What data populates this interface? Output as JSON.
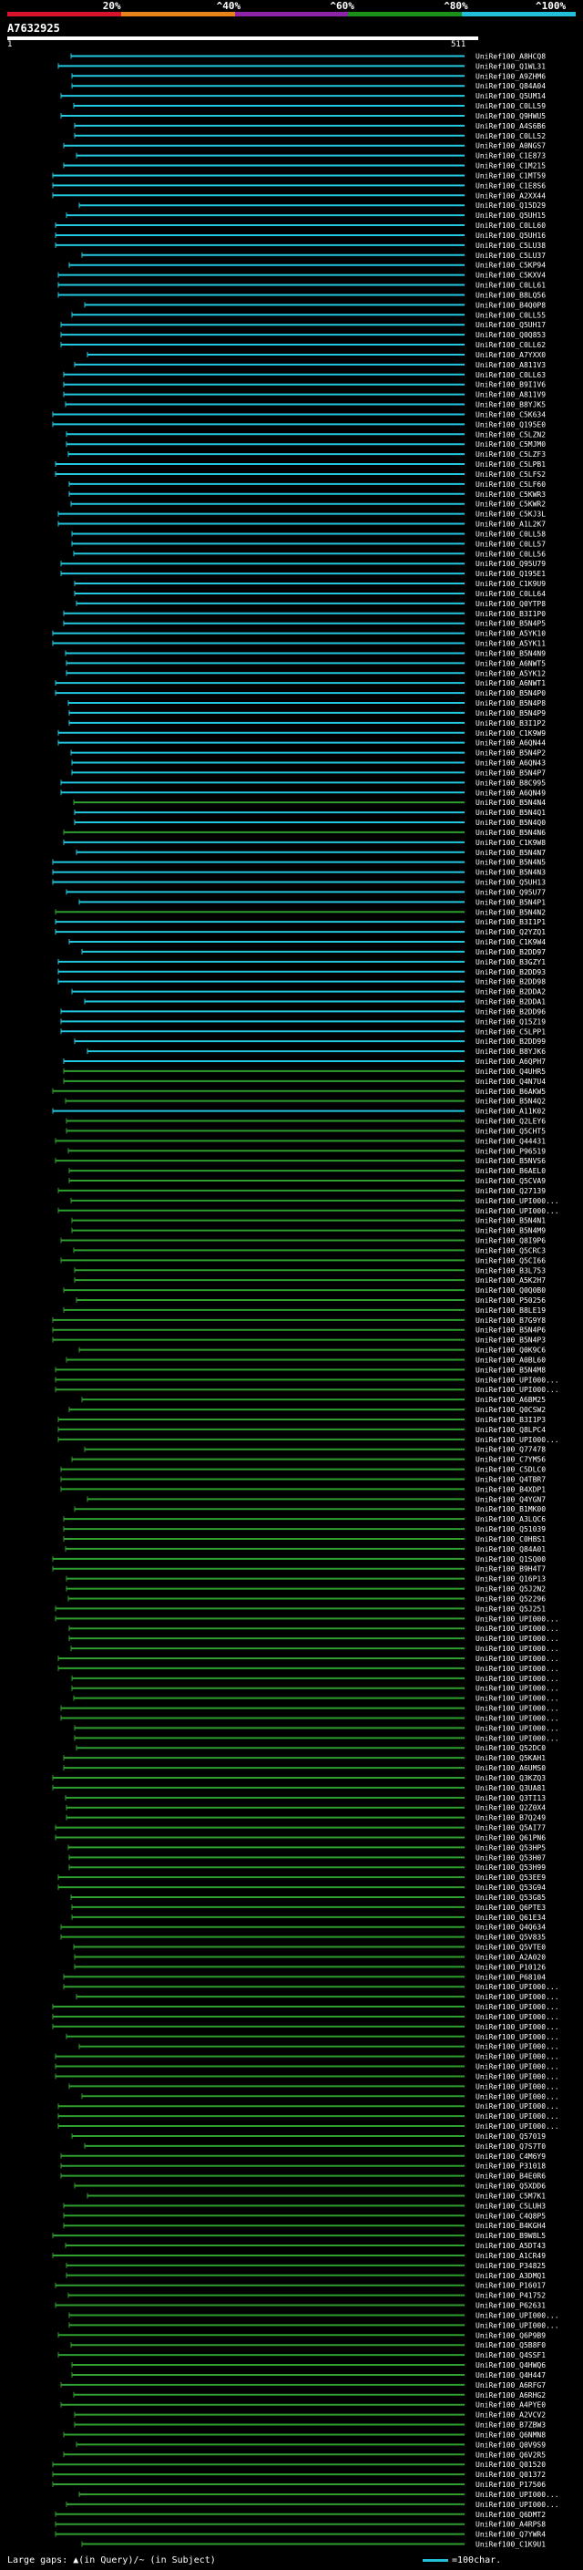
{
  "legend": {
    "ticks": [
      {
        "label": "20%"
      },
      {
        "label": "^40%"
      },
      {
        "label": "^60%"
      },
      {
        "label": "^80%"
      },
      {
        "label": "^100%"
      }
    ],
    "colors": [
      "#d8142a",
      "#e8821a",
      "#8e24a8",
      "#1a8f1a",
      "#22c0d8"
    ]
  },
  "query": {
    "id": "A7632925",
    "start": "1",
    "end": "511"
  },
  "colors": {
    "high": "#22c8e0",
    "low": "#2e9e2e",
    "background": "#000000",
    "text": "#ffffff"
  },
  "hits": [
    {
      "label": "UniRef100_A8HCQ8",
      "group": "high"
    },
    {
      "label": "UniRef100_Q1WL31",
      "group": "high"
    },
    {
      "label": "UniRef100_A9ZHM6",
      "group": "high"
    },
    {
      "label": "UniRef100_Q84A04",
      "group": "high"
    },
    {
      "label": "UniRef100_Q5UM14",
      "group": "high"
    },
    {
      "label": "UniRef100_C0LL59",
      "group": "high"
    },
    {
      "label": "UniRef100_Q9HWU5",
      "group": "high"
    },
    {
      "label": "UniRef100_A4S6B6",
      "group": "high"
    },
    {
      "label": "UniRef100_C0LL52",
      "group": "high"
    },
    {
      "label": "UniRef100_A0NGS7",
      "group": "high"
    },
    {
      "label": "UniRef100_C1E873",
      "group": "high"
    },
    {
      "label": "UniRef100_C1M215",
      "group": "high"
    },
    {
      "label": "UniRef100_C1MT59",
      "group": "high"
    },
    {
      "label": "UniRef100_C1E8S6",
      "group": "high"
    },
    {
      "label": "UniRef100_A2XX44",
      "group": "high"
    },
    {
      "label": "UniRef100_Q15D29",
      "group": "high"
    },
    {
      "label": "UniRef100_Q5UH15",
      "group": "high"
    },
    {
      "label": "UniRef100_C0LL60",
      "group": "high"
    },
    {
      "label": "UniRef100_Q5UH16",
      "group": "high"
    },
    {
      "label": "UniRef100_C5LU38",
      "group": "high"
    },
    {
      "label": "UniRef100_C5LU37",
      "group": "high"
    },
    {
      "label": "UniRef100_C5KP94",
      "group": "high"
    },
    {
      "label": "UniRef100_C5KXV4",
      "group": "high"
    },
    {
      "label": "UniRef100_C0LL61",
      "group": "high"
    },
    {
      "label": "UniRef100_B8LQ56",
      "group": "high"
    },
    {
      "label": "UniRef100_B4Q0P8",
      "group": "high"
    },
    {
      "label": "UniRef100_C0LL55",
      "group": "high"
    },
    {
      "label": "UniRef100_Q5UH17",
      "group": "high"
    },
    {
      "label": "UniRef100_Q0Q853",
      "group": "high"
    },
    {
      "label": "UniRef100_C0LL62",
      "group": "high"
    },
    {
      "label": "UniRef100_A7YXX0",
      "group": "high"
    },
    {
      "label": "UniRef100_A811V3",
      "group": "high"
    },
    {
      "label": "UniRef100_C0LL63",
      "group": "high"
    },
    {
      "label": "UniRef100_B9I1V6",
      "group": "high"
    },
    {
      "label": "UniRef100_A811V9",
      "group": "high"
    },
    {
      "label": "UniRef100_B8YJK5",
      "group": "high"
    },
    {
      "label": "UniRef100_C5K634",
      "group": "high"
    },
    {
      "label": "UniRef100_Q195E0",
      "group": "high"
    },
    {
      "label": "UniRef100_C5LZN2",
      "group": "high"
    },
    {
      "label": "UniRef100_C5MJM0",
      "group": "high"
    },
    {
      "label": "UniRef100_C5LZF3",
      "group": "high"
    },
    {
      "label": "UniRef100_C5LPB1",
      "group": "high"
    },
    {
      "label": "UniRef100_C5LFS2",
      "group": "high"
    },
    {
      "label": "UniRef100_C5LF60",
      "group": "high"
    },
    {
      "label": "UniRef100_C5KWR3",
      "group": "high"
    },
    {
      "label": "UniRef100_C5KWR2",
      "group": "high"
    },
    {
      "label": "UniRef100_C5KJ3L",
      "group": "high"
    },
    {
      "label": "UniRef100_A1L2K7",
      "group": "high"
    },
    {
      "label": "UniRef100_C0LL58",
      "group": "high"
    },
    {
      "label": "UniRef100_C0LL57",
      "group": "high"
    },
    {
      "label": "UniRef100_C0LL56",
      "group": "high"
    },
    {
      "label": "UniRef100_Q95U79",
      "group": "high"
    },
    {
      "label": "UniRef100_Q195E1",
      "group": "high"
    },
    {
      "label": "UniRef100_C1K9U9",
      "group": "high"
    },
    {
      "label": "UniRef100_C0LL64",
      "group": "high"
    },
    {
      "label": "UniRef100_Q0YTP8",
      "group": "high"
    },
    {
      "label": "UniRef100_B3I1P0",
      "group": "high"
    },
    {
      "label": "UniRef100_B5N4P5",
      "group": "high"
    },
    {
      "label": "UniRef100_A5YK10",
      "group": "high"
    },
    {
      "label": "UniRef100_A5YK11",
      "group": "high"
    },
    {
      "label": "UniRef100_B5N4N9",
      "group": "high"
    },
    {
      "label": "UniRef100_A6NWT5",
      "group": "high"
    },
    {
      "label": "UniRef100_A5YK12",
      "group": "high"
    },
    {
      "label": "UniRef100_A6NWT1",
      "group": "high"
    },
    {
      "label": "UniRef100_B5N4P0",
      "group": "high"
    },
    {
      "label": "UniRef100_B5N4P8",
      "group": "high"
    },
    {
      "label": "UniRef100_B5N4P9",
      "group": "high"
    },
    {
      "label": "UniRef100_B3I1P2",
      "group": "high"
    },
    {
      "label": "UniRef100_C1K9W9",
      "group": "high"
    },
    {
      "label": "UniRef100_A6QN44",
      "group": "high"
    },
    {
      "label": "UniRef100_B5N4P2",
      "group": "high"
    },
    {
      "label": "UniRef100_A6QN43",
      "group": "high"
    },
    {
      "label": "UniRef100_B5N4P7",
      "group": "high"
    },
    {
      "label": "UniRef100_B8C995",
      "group": "high"
    },
    {
      "label": "UniRef100_A6QN49",
      "group": "high"
    },
    {
      "label": "UniRef100_B5N4N4",
      "group": "low"
    },
    {
      "label": "UniRef100_B5N4Q1",
      "group": "high"
    },
    {
      "label": "UniRef100_B5N4Q0",
      "group": "high"
    },
    {
      "label": "UniRef100_B5N4N6",
      "group": "low"
    },
    {
      "label": "UniRef100_C1K9W8",
      "group": "high"
    },
    {
      "label": "UniRef100_B5N4N7",
      "group": "high"
    },
    {
      "label": "UniRef100_B5N4N5",
      "group": "high"
    },
    {
      "label": "UniRef100_B5N4N3",
      "group": "high"
    },
    {
      "label": "UniRef100_Q5UH13",
      "group": "high"
    },
    {
      "label": "UniRef100_Q95U77",
      "group": "high"
    },
    {
      "label": "UniRef100_B5N4P1",
      "group": "high"
    },
    {
      "label": "UniRef100_B5N4N2",
      "group": "low"
    },
    {
      "label": "UniRef100_B3I1P1",
      "group": "high"
    },
    {
      "label": "UniRef100_Q2YZQ1",
      "group": "high"
    },
    {
      "label": "UniRef100_C1K9W4",
      "group": "high"
    },
    {
      "label": "UniRef100_B2DD97",
      "group": "high"
    },
    {
      "label": "UniRef100_B3GZY1",
      "group": "high"
    },
    {
      "label": "UniRef100_B2DD93",
      "group": "high"
    },
    {
      "label": "UniRef100_B2DD98",
      "group": "high"
    },
    {
      "label": "UniRef100_B2DDA2",
      "group": "high"
    },
    {
      "label": "UniRef100_B2DDA1",
      "group": "high"
    },
    {
      "label": "UniRef100_B2DD96",
      "group": "high"
    },
    {
      "label": "UniRef100_Q15Z19",
      "group": "high"
    },
    {
      "label": "UniRef100_C5LPP1",
      "group": "high"
    },
    {
      "label": "UniRef100_B2DD99",
      "group": "high"
    },
    {
      "label": "UniRef100_B8YJK6",
      "group": "high"
    },
    {
      "label": "UniRef100_A6QPH7",
      "group": "high"
    },
    {
      "label": "UniRef100_Q4UHR5",
      "group": "low"
    },
    {
      "label": "UniRef100_Q4N7U4",
      "group": "low"
    },
    {
      "label": "UniRef100_B6AKW5",
      "group": "low"
    },
    {
      "label": "UniRef100_B5N4Q2",
      "group": "low"
    },
    {
      "label": "UniRef100_A11K02",
      "group": "high"
    },
    {
      "label": "UniRef100_Q2LEY6",
      "group": "low"
    },
    {
      "label": "UniRef100_Q5CHT5",
      "group": "low"
    },
    {
      "label": "UniRef100_Q44431",
      "group": "low"
    },
    {
      "label": "UniRef100_P96519",
      "group": "low"
    },
    {
      "label": "UniRef100_B5NVS6",
      "group": "low"
    },
    {
      "label": "UniRef100_B6AEL0",
      "group": "low"
    },
    {
      "label": "UniRef100_Q5CVA9",
      "group": "low"
    },
    {
      "label": "UniRef100_Q27139",
      "group": "low"
    },
    {
      "label": "UniRef100_UPI000...",
      "group": "low"
    },
    {
      "label": "UniRef100_UPI000...",
      "group": "low"
    },
    {
      "label": "UniRef100_B5N4N1",
      "group": "low"
    },
    {
      "label": "UniRef100_B5N4M9",
      "group": "low"
    },
    {
      "label": "UniRef100_Q8I9P6",
      "group": "low"
    },
    {
      "label": "UniRef100_Q5CRC3",
      "group": "low"
    },
    {
      "label": "UniRef100_Q5CI66",
      "group": "low"
    },
    {
      "label": "UniRef100_B3L753",
      "group": "low"
    },
    {
      "label": "UniRef100_A5K2H7",
      "group": "low"
    },
    {
      "label": "UniRef100_Q0Q0B0",
      "group": "low"
    },
    {
      "label": "UniRef100_P50256",
      "group": "low"
    },
    {
      "label": "UniRef100_B8LE19",
      "group": "low"
    },
    {
      "label": "UniRef100_B7G9Y8",
      "group": "low"
    },
    {
      "label": "UniRef100_B5N4P6",
      "group": "low"
    },
    {
      "label": "UniRef100_B5N4P3",
      "group": "low"
    },
    {
      "label": "UniRef100_Q0K9C6",
      "group": "low"
    },
    {
      "label": "UniRef100_A0BL60",
      "group": "low"
    },
    {
      "label": "UniRef100_B5N4M8",
      "group": "low"
    },
    {
      "label": "UniRef100_UPI000...",
      "group": "low"
    },
    {
      "label": "UniRef100_UPI000...",
      "group": "low"
    },
    {
      "label": "UniRef100_A6BM25",
      "group": "low"
    },
    {
      "label": "UniRef100_Q0CSW2",
      "group": "low"
    },
    {
      "label": "UniRef100_B3I1P3",
      "group": "low"
    },
    {
      "label": "UniRef100_Q8LPC4",
      "group": "low"
    },
    {
      "label": "UniRef100_UPI000...",
      "group": "low"
    },
    {
      "label": "UniRef100_Q77478",
      "group": "low"
    },
    {
      "label": "UniRef100_C7YM56",
      "group": "low"
    },
    {
      "label": "UniRef100_C5DLC0",
      "group": "low"
    },
    {
      "label": "UniRef100_Q4TBR7",
      "group": "low"
    },
    {
      "label": "UniRef100_B4XDP1",
      "group": "low"
    },
    {
      "label": "UniRef100_Q4YGN7",
      "group": "low"
    },
    {
      "label": "UniRef100_B1MK00",
      "group": "low"
    },
    {
      "label": "UniRef100_A3LQC6",
      "group": "low"
    },
    {
      "label": "UniRef100_Q51039",
      "group": "low"
    },
    {
      "label": "UniRef100_C0HBS1",
      "group": "low"
    },
    {
      "label": "UniRef100_Q84A01",
      "group": "low"
    },
    {
      "label": "UniRef100_Q1SQ00",
      "group": "low"
    },
    {
      "label": "UniRef100_B9H4T7",
      "group": "low"
    },
    {
      "label": "UniRef100_Q16P13",
      "group": "low"
    },
    {
      "label": "UniRef100_Q5J2N2",
      "group": "low"
    },
    {
      "label": "UniRef100_Q52296",
      "group": "low"
    },
    {
      "label": "UniRef100_Q5J251",
      "group": "low"
    },
    {
      "label": "UniRef100_UPI000...",
      "group": "low"
    },
    {
      "label": "UniRef100_UPI000...",
      "group": "low"
    },
    {
      "label": "UniRef100_UPI000...",
      "group": "low"
    },
    {
      "label": "UniRef100_UPI000...",
      "group": "low"
    },
    {
      "label": "UniRef100_UPI000...",
      "group": "low"
    },
    {
      "label": "UniRef100_UPI000...",
      "group": "low"
    },
    {
      "label": "UniRef100_UPI000...",
      "group": "low"
    },
    {
      "label": "UniRef100_UPI000...",
      "group": "low"
    },
    {
      "label": "UniRef100_UPI000...",
      "group": "low"
    },
    {
      "label": "UniRef100_UPI000...",
      "group": "low"
    },
    {
      "label": "UniRef100_UPI000...",
      "group": "low"
    },
    {
      "label": "UniRef100_UPI000...",
      "group": "low"
    },
    {
      "label": "UniRef100_UPI000...",
      "group": "low"
    },
    {
      "label": "UniRef100_Q52DC0",
      "group": "low"
    },
    {
      "label": "UniRef100_Q5KAH1",
      "group": "low"
    },
    {
      "label": "UniRef100_A6UMS0",
      "group": "low"
    },
    {
      "label": "UniRef100_Q3KZQ3",
      "group": "low"
    },
    {
      "label": "UniRef100_Q3UA81",
      "group": "low"
    },
    {
      "label": "UniRef100_Q3TI13",
      "group": "low"
    },
    {
      "label": "UniRef100_Q2Z0X4",
      "group": "low"
    },
    {
      "label": "UniRef100_B7Q249",
      "group": "low"
    },
    {
      "label": "UniRef100_Q5AI77",
      "group": "low"
    },
    {
      "label": "UniRef100_Q61PN6",
      "group": "low"
    },
    {
      "label": "UniRef100_Q53HP5",
      "group": "low"
    },
    {
      "label": "UniRef100_Q53H07",
      "group": "low"
    },
    {
      "label": "UniRef100_Q53H99",
      "group": "low"
    },
    {
      "label": "UniRef100_Q53EE9",
      "group": "low"
    },
    {
      "label": "UniRef100_Q53G94",
      "group": "low"
    },
    {
      "label": "UniRef100_Q53G85",
      "group": "low"
    },
    {
      "label": "UniRef100_Q6PTE3",
      "group": "low"
    },
    {
      "label": "UniRef100_Q61E34",
      "group": "low"
    },
    {
      "label": "UniRef100_Q4Q634",
      "group": "low"
    },
    {
      "label": "UniRef100_Q5V835",
      "group": "low"
    },
    {
      "label": "UniRef100_Q5VTE0",
      "group": "low"
    },
    {
      "label": "UniRef100_A2A020",
      "group": "low"
    },
    {
      "label": "UniRef100_P10126",
      "group": "low"
    },
    {
      "label": "UniRef100_P68104",
      "group": "low"
    },
    {
      "label": "UniRef100_UPI000...",
      "group": "low"
    },
    {
      "label": "UniRef100_UPI000...",
      "group": "low"
    },
    {
      "label": "UniRef100_UPI000...",
      "group": "low"
    },
    {
      "label": "UniRef100_UPI000...",
      "group": "low"
    },
    {
      "label": "UniRef100_UPI000...",
      "group": "low"
    },
    {
      "label": "UniRef100_UPI000...",
      "group": "low"
    },
    {
      "label": "UniRef100_UPI000...",
      "group": "low"
    },
    {
      "label": "UniRef100_UPI000...",
      "group": "low"
    },
    {
      "label": "UniRef100_UPI000...",
      "group": "low"
    },
    {
      "label": "UniRef100_UPI000...",
      "group": "low"
    },
    {
      "label": "UniRef100_UPI000...",
      "group": "low"
    },
    {
      "label": "UniRef100_UPI000...",
      "group": "low"
    },
    {
      "label": "UniRef100_UPI000...",
      "group": "low"
    },
    {
      "label": "UniRef100_UPI000...",
      "group": "low"
    },
    {
      "label": "UniRef100_UPI000...",
      "group": "low"
    },
    {
      "label": "UniRef100_Q57019",
      "group": "low"
    },
    {
      "label": "UniRef100_Q7S7T0",
      "group": "low"
    },
    {
      "label": "UniRef100_C4M6Y9",
      "group": "low"
    },
    {
      "label": "UniRef100_P31018",
      "group": "low"
    },
    {
      "label": "UniRef100_B4E0R6",
      "group": "low"
    },
    {
      "label": "UniRef100_Q5XDD6",
      "group": "low"
    },
    {
      "label": "UniRef100_C5M7K1",
      "group": "low"
    },
    {
      "label": "UniRef100_C5LUH3",
      "group": "low"
    },
    {
      "label": "UniRef100_C4Q8P5",
      "group": "low"
    },
    {
      "label": "UniRef100_B4KGH4",
      "group": "low"
    },
    {
      "label": "UniRef100_B9W8L5",
      "group": "low"
    },
    {
      "label": "UniRef100_A5DT43",
      "group": "low"
    },
    {
      "label": "UniRef100_A1CR49",
      "group": "low"
    },
    {
      "label": "UniRef100_P34825",
      "group": "low"
    },
    {
      "label": "UniRef100_A3DMQ1",
      "group": "low"
    },
    {
      "label": "UniRef100_P16017",
      "group": "low"
    },
    {
      "label": "UniRef100_P41752",
      "group": "low"
    },
    {
      "label": "UniRef100_P62631",
      "group": "low"
    },
    {
      "label": "UniRef100_UPI000...",
      "group": "low"
    },
    {
      "label": "UniRef100_UPI000...",
      "group": "low"
    },
    {
      "label": "UniRef100_Q6P9B9",
      "group": "low"
    },
    {
      "label": "UniRef100_Q5B8F0",
      "group": "low"
    },
    {
      "label": "UniRef100_Q4SSF1",
      "group": "low"
    },
    {
      "label": "UniRef100_Q4HWQ6",
      "group": "low"
    },
    {
      "label": "UniRef100_Q4H447",
      "group": "low"
    },
    {
      "label": "UniRef100_A6RFG7",
      "group": "low"
    },
    {
      "label": "UniRef100_A6RHG2",
      "group": "low"
    },
    {
      "label": "UniRef100_A4PYE0",
      "group": "low"
    },
    {
      "label": "UniRef100_A2VCV2",
      "group": "low"
    },
    {
      "label": "UniRef100_B7ZBW3",
      "group": "low"
    },
    {
      "label": "UniRef100_Q6NMN8",
      "group": "low"
    },
    {
      "label": "UniRef100_Q0V9S9",
      "group": "low"
    },
    {
      "label": "UniRef100_Q6V2R5",
      "group": "low"
    },
    {
      "label": "UniRef100_Q01520",
      "group": "low"
    },
    {
      "label": "UniRef100_Q01372",
      "group": "low"
    },
    {
      "label": "UniRef100_P17506",
      "group": "low"
    },
    {
      "label": "UniRef100_UPI000...",
      "group": "low"
    },
    {
      "label": "UniRef100_UPI000...",
      "group": "low"
    },
    {
      "label": "UniRef100_Q6DMT2",
      "group": "low"
    },
    {
      "label": "UniRef100_A4RPS8",
      "group": "low"
    },
    {
      "label": "UniRef100_Q7YWR4",
      "group": "low"
    },
    {
      "label": "UniRef100_C1K9U1",
      "group": "low"
    }
  ],
  "footer": {
    "left": "Large gaps: ▲(in Query)/~ (in Subject)",
    "right": "=100char."
  }
}
